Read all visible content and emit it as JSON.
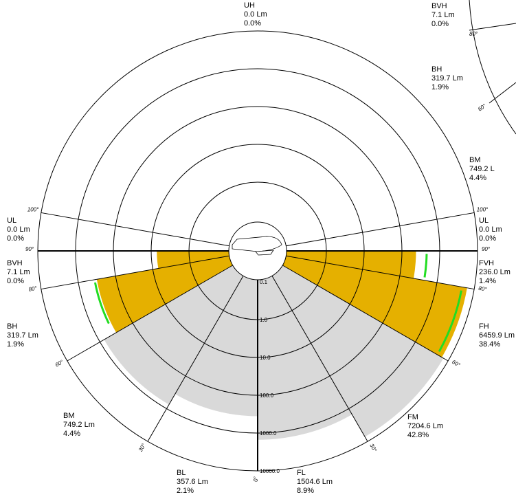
{
  "zones": [
    {
      "code": "UH",
      "lumens": "0.0 Lm",
      "percent": "0.0%"
    },
    {
      "code": "UL",
      "lumens": "0.0 Lm",
      "percent": "0.0%"
    },
    {
      "code": "BVH",
      "lumens": "7.1 Lm",
      "percent": "0.0%"
    },
    {
      "code": "BH",
      "lumens": "319.7 Lm",
      "percent": "1.9%"
    },
    {
      "code": "BM",
      "lumens": "749.2 Lm",
      "percent": "4.4%"
    },
    {
      "code": "BL",
      "lumens": "357.6 Lm",
      "percent": "2.1%"
    },
    {
      "code": "FL",
      "lumens": "1504.6 Lm",
      "percent": "8.9%"
    },
    {
      "code": "FM",
      "lumens": "7204.6 Lm",
      "percent": "42.8%"
    },
    {
      "code": "FH",
      "lumens": "6459.9 Lm",
      "percent": "38.4%"
    },
    {
      "code": "FVH",
      "lumens": "236.0 Lm",
      "percent": "1.4%"
    },
    {
      "code": "UL",
      "lumens": "0.0 Lm",
      "percent": "0.0%"
    }
  ],
  "rings": [
    "0.1",
    "1.0",
    "10.0",
    "100.0",
    "1000.0",
    "10000.0"
  ],
  "left_angles": [
    "100°",
    "90°",
    "80°",
    "60°",
    "30°",
    "0°"
  ],
  "right_angles": [
    "100°",
    "90°",
    "80°",
    "60°",
    "30°"
  ],
  "side_chart": {
    "zones": [
      {
        "code": "BVH",
        "lumens": "7.1 Lm",
        "percent": "0.0%"
      },
      {
        "code": "BH",
        "lumens": "319.7 Lm",
        "percent": "1.9%"
      },
      {
        "code": "BM",
        "lumens": "749.2 L",
        "percent": "4.4%"
      }
    ],
    "angles": [
      "80°",
      "60°"
    ]
  }
}
